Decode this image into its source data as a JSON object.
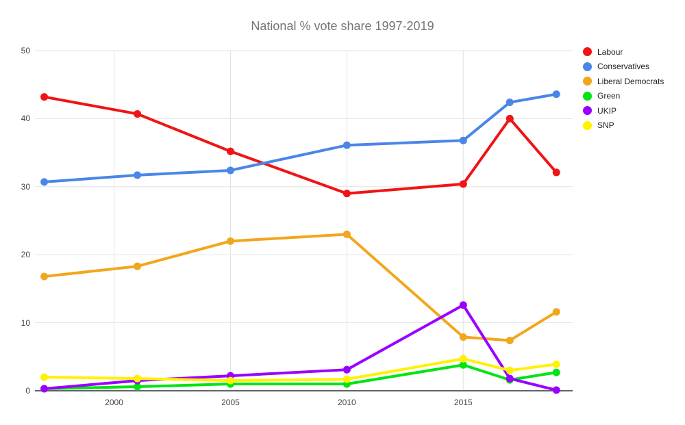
{
  "page": {
    "background": "#ffffff"
  },
  "chart_data": {
    "type": "line",
    "title": "National % vote share 1997-2019",
    "title_color": "#757575",
    "x": [
      1997,
      2001,
      2005,
      2010,
      2015,
      2017,
      2019
    ],
    "x_ticks": [
      2000,
      2005,
      2010,
      2015
    ],
    "y_ticks": [
      0,
      10,
      20,
      30,
      40,
      50
    ],
    "xlim": [
      1996.6,
      2019.7
    ],
    "ylim": [
      0,
      50
    ],
    "grid": true,
    "legend_position": "right",
    "gridline_color": "#e3e3e3",
    "axis_line_color": "#5f6368",
    "axis_label_color": "#424242",
    "legend_text_color": "#212121",
    "series": [
      {
        "name": "Labour",
        "color": "#f01414",
        "values": [
          43.2,
          40.7,
          35.2,
          29.0,
          30.4,
          40.0,
          32.1
        ]
      },
      {
        "name": "Conservatives",
        "color": "#4a86e8",
        "values": [
          30.7,
          31.7,
          32.4,
          36.1,
          36.8,
          42.4,
          43.6
        ]
      },
      {
        "name": "Liberal Democrats",
        "color": "#f2a61d",
        "values": [
          16.8,
          18.3,
          22.0,
          23.0,
          7.9,
          7.4,
          11.6
        ]
      },
      {
        "name": "Green",
        "color": "#00e412",
        "values": [
          0.3,
          0.6,
          1.0,
          1.0,
          3.8,
          1.6,
          2.7
        ]
      },
      {
        "name": "UKIP",
        "color": "#9900ff",
        "values": [
          0.3,
          1.5,
          2.2,
          3.1,
          12.6,
          1.8,
          0.1
        ]
      },
      {
        "name": "SNP",
        "color": "#fff100",
        "values": [
          2.0,
          1.8,
          1.5,
          1.7,
          4.7,
          3.0,
          3.9
        ]
      }
    ]
  }
}
